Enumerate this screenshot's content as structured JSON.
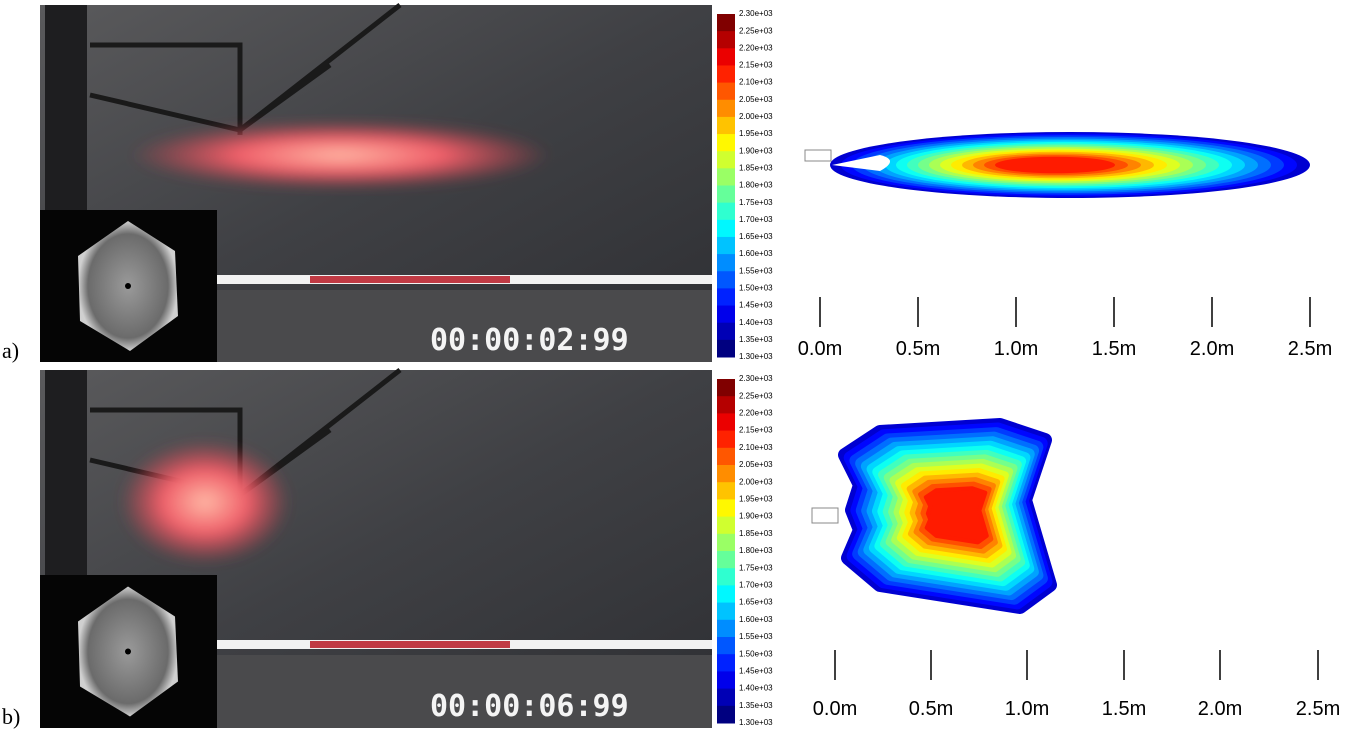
{
  "panels": [
    {
      "label": "a)",
      "timestamp": "00:00:02:99",
      "colorbar": [
        "2.30e+03",
        "2.25e+03",
        "2.20e+03",
        "2.15e+03",
        "2.10e+03",
        "2.05e+03",
        "2.00e+03",
        "1.95e+03",
        "1.90e+03",
        "1.85e+03",
        "1.80e+03",
        "1.75e+03",
        "1.70e+03",
        "1.65e+03",
        "1.60e+03",
        "1.55e+03",
        "1.50e+03",
        "1.45e+03",
        "1.40e+03",
        "1.35e+03",
        "1.30e+03"
      ],
      "scale": [
        "0.0m",
        "0.5m",
        "1.0m",
        "1.5m",
        "2.0m",
        "2.5m"
      ]
    },
    {
      "label": "b)",
      "timestamp": "00:00:06:99",
      "colorbar": [
        "2.30e+03",
        "2.25e+03",
        "2.20e+03",
        "2.15e+03",
        "2.10e+03",
        "2.05e+03",
        "2.00e+03",
        "1.95e+03",
        "1.90e+03",
        "1.85e+03",
        "1.80e+03",
        "1.75e+03",
        "1.70e+03",
        "1.65e+03",
        "1.60e+03",
        "1.55e+03",
        "1.50e+03",
        "1.45e+03",
        "1.40e+03",
        "1.35e+03",
        "1.30e+03"
      ],
      "scale": [
        "0.0m",
        "0.5m",
        "1.0m",
        "1.5m",
        "2.0m",
        "2.5m"
      ]
    }
  ]
}
